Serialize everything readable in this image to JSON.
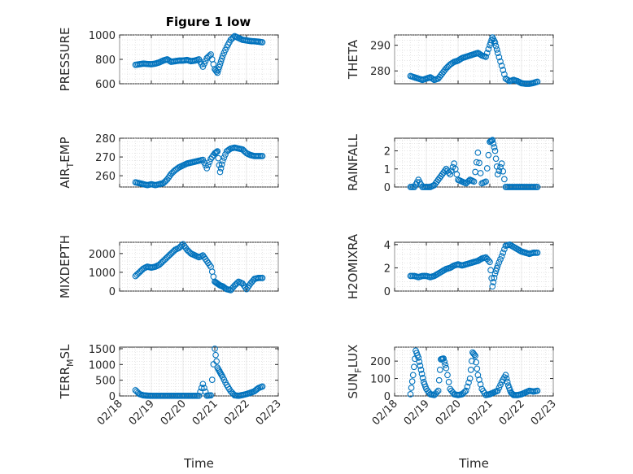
{
  "figure_title": "Figure 1 low",
  "chart_data": [
    {
      "type": "scatter",
      "ylabel": "PRESSURE",
      "ylim": [
        600,
        1000
      ],
      "yticks": [
        "600",
        "800",
        "1000"
      ],
      "xlabel": "",
      "xlim": [
        "02/18",
        "02/23"
      ],
      "grid": "on",
      "marker_color": "#0072BD",
      "series": [
        {
          "x": [
            "02/18 12:00",
            "02/18 15:00",
            "02/18 18:00",
            "02/18 21:00",
            "02/19 00:00",
            "02/19 03:00",
            "02/19 06:00",
            "02/19 09:00",
            "02/19 12:00",
            "02/19 15:00",
            "02/19 18:00",
            "02/19 21:00",
            "02/20 00:00",
            "02/20 03:00",
            "02/20 06:00",
            "02/20 09:00",
            "02/20 12:00",
            "02/20 15:00",
            "02/20 18:00",
            "02/20 21:00",
            "02/21 00:00",
            "02/21 02:00",
            "02/21 04:00",
            "02/21 06:00",
            "02/21 09:00",
            "02/21 12:00",
            "02/21 15:00",
            "02/21 18:00",
            "02/21 21:00",
            "02/22 00:00",
            "02/22 03:00",
            "02/22 06:00",
            "02/22 09:00",
            "02/22 12:00"
          ],
          "y": [
            755,
            760,
            765,
            762,
            760,
            765,
            775,
            790,
            800,
            780,
            785,
            790,
            790,
            795,
            785,
            790,
            800,
            740,
            810,
            840,
            720,
            690,
            760,
            830,
            900,
            960,
            990,
            975,
            960,
            955,
            950,
            948,
            945,
            940
          ]
        }
      ]
    },
    {
      "type": "scatter",
      "ylabel": "THETA",
      "ylim": [
        275,
        294
      ],
      "yticks": [
        "280",
        "290"
      ],
      "xlabel": "",
      "xlim": [
        "02/18",
        "02/23"
      ],
      "grid": "on",
      "marker_color": "#0072BD",
      "series": [
        {
          "x": [
            "02/18 12:00",
            "02/18 15:00",
            "02/18 18:00",
            "02/18 21:00",
            "02/19 00:00",
            "02/19 03:00",
            "02/19 06:00",
            "02/19 09:00",
            "02/19 12:00",
            "02/19 15:00",
            "02/19 18:00",
            "02/19 21:00",
            "02/20 00:00",
            "02/20 03:00",
            "02/20 06:00",
            "02/20 09:00",
            "02/20 12:00",
            "02/20 15:00",
            "02/20 18:00",
            "02/20 21:00",
            "02/21 00:00",
            "02/21 02:00",
            "02/21 04:00",
            "02/21 06:00",
            "02/21 09:00",
            "02/21 12:00",
            "02/21 15:00",
            "02/21 18:00",
            "02/21 21:00",
            "02/22 00:00",
            "02/22 03:00",
            "02/22 06:00",
            "02/22 09:00",
            "02/22 12:00"
          ],
          "y": [
            278,
            277.5,
            277,
            276.5,
            277,
            277.5,
            276.5,
            277,
            279,
            281,
            282.5,
            283.5,
            284,
            285,
            285.5,
            286,
            286.5,
            287,
            286,
            285.5,
            290,
            293,
            291,
            287,
            282,
            277,
            276,
            276.5,
            276,
            275.2,
            275,
            275,
            275.3,
            275.8
          ]
        }
      ]
    },
    {
      "type": "scatter",
      "ylabel": "AIR_TEMP",
      "ylabel_main": "AIR",
      "ylabel_sub": "T",
      "ylabel_rest": "EMP",
      "ylim": [
        254,
        280
      ],
      "yticks": [
        "260",
        "270",
        "280"
      ],
      "xlabel": "",
      "xlim": [
        "02/18",
        "02/23"
      ],
      "grid": "on",
      "marker_color": "#0072BD",
      "series": [
        {
          "x": [
            "02/18 12:00",
            "02/18 15:00",
            "02/18 18:00",
            "02/18 21:00",
            "02/19 00:00",
            "02/19 03:00",
            "02/19 06:00",
            "02/19 09:00",
            "02/19 12:00",
            "02/19 15:00",
            "02/19 18:00",
            "02/19 21:00",
            "02/20 00:00",
            "02/20 03:00",
            "02/20 06:00",
            "02/20 09:00",
            "02/20 12:00",
            "02/20 15:00",
            "02/20 18:00",
            "02/20 21:00",
            "02/21 00:00",
            "02/21 02:00",
            "02/21 04:00",
            "02/21 06:00",
            "02/21 09:00",
            "02/21 12:00",
            "02/21 15:00",
            "02/21 18:00",
            "02/21 21:00",
            "02/22 00:00",
            "02/22 03:00",
            "02/22 06:00",
            "02/22 09:00",
            "02/22 12:00"
          ],
          "y": [
            256.5,
            256,
            255.5,
            255,
            255.5,
            255,
            255.5,
            256,
            258,
            261,
            263,
            264.5,
            265.5,
            266.5,
            267,
            267.5,
            268,
            268.5,
            264,
            269,
            272,
            273,
            262,
            268,
            273,
            274.5,
            275,
            274.5,
            274,
            272,
            271,
            270.5,
            270.5,
            270.5
          ]
        }
      ]
    },
    {
      "type": "scatter",
      "ylabel": "RAINFALL",
      "ylim": [
        0,
        2.7
      ],
      "yticks": [
        "0",
        "1",
        "2"
      ],
      "xlabel": "",
      "xlim": [
        "02/18",
        "02/23"
      ],
      "grid": "on",
      "marker_color": "#0072BD",
      "series": [
        {
          "x": [
            "02/18 12:00",
            "02/18 15:00",
            "02/18 18:00",
            "02/18 21:00",
            "02/19 00:00",
            "02/19 03:00",
            "02/19 06:00",
            "02/19 09:00",
            "02/19 12:00",
            "02/19 15:00",
            "02/19 18:00",
            "02/19 21:00",
            "02/20 00:00",
            "02/20 03:00",
            "02/20 06:00",
            "02/20 09:00",
            "02/20 12:00",
            "02/20 15:00",
            "02/20 18:00",
            "02/20 21:00",
            "02/21 00:00",
            "02/21 02:00",
            "02/21 04:00",
            "02/21 06:00",
            "02/21 09:00",
            "02/21 12:00",
            "02/21 15:00",
            "02/21 18:00",
            "02/21 21:00",
            "02/22 00:00",
            "02/22 03:00",
            "02/22 06:00",
            "02/22 09:00",
            "02/22 12:00"
          ],
          "y": [
            0,
            0,
            0.4,
            0,
            0,
            0,
            0.1,
            0.4,
            0.7,
            1.0,
            0.7,
            1.3,
            0.4,
            0.3,
            0.2,
            0.4,
            0.3,
            1.9,
            0.2,
            0.3,
            2.5,
            2.6,
            2.0,
            0.7,
            1.3,
            0,
            0,
            0,
            0,
            0,
            0,
            0,
            0,
            0
          ]
        }
      ]
    },
    {
      "type": "scatter",
      "ylabel": "MIXDEPTH",
      "ylim": [
        0,
        2600
      ],
      "yticks": [
        "0",
        "1000",
        "2000"
      ],
      "xlabel": "",
      "xlim": [
        "02/18",
        "02/23"
      ],
      "grid": "on",
      "marker_color": "#0072BD",
      "series": [
        {
          "x": [
            "02/18 12:00",
            "02/18 15:00",
            "02/18 18:00",
            "02/18 21:00",
            "02/19 00:00",
            "02/19 03:00",
            "02/19 06:00",
            "02/19 09:00",
            "02/19 12:00",
            "02/19 15:00",
            "02/19 18:00",
            "02/19 21:00",
            "02/20 00:00",
            "02/20 03:00",
            "02/20 06:00",
            "02/20 09:00",
            "02/20 12:00",
            "02/20 15:00",
            "02/20 18:00",
            "02/20 21:00",
            "02/21 00:00",
            "02/21 02:00",
            "02/21 04:00",
            "02/21 06:00",
            "02/21 09:00",
            "02/21 12:00",
            "02/21 15:00",
            "02/21 18:00",
            "02/21 21:00",
            "02/22 00:00",
            "02/22 03:00",
            "02/22 06:00",
            "02/22 09:00",
            "02/22 12:00"
          ],
          "y": [
            800,
            1000,
            1200,
            1300,
            1250,
            1300,
            1400,
            1600,
            1800,
            2000,
            2200,
            2300,
            2500,
            2200,
            2000,
            1900,
            1800,
            1900,
            1600,
            1300,
            500,
            400,
            300,
            250,
            100,
            50,
            300,
            500,
            400,
            100,
            400,
            650,
            700,
            700
          ]
        }
      ]
    },
    {
      "type": "scatter",
      "ylabel": "H2OMIXRA",
      "ylim": [
        0,
        4.2
      ],
      "yticks": [
        "0",
        "2",
        "4"
      ],
      "xlabel": "",
      "xlim": [
        "02/18",
        "02/23"
      ],
      "grid": "on",
      "marker_color": "#0072BD",
      "series": [
        {
          "x": [
            "02/18 12:00",
            "02/18 15:00",
            "02/18 18:00",
            "02/18 21:00",
            "02/19 00:00",
            "02/19 03:00",
            "02/19 06:00",
            "02/19 09:00",
            "02/19 12:00",
            "02/19 15:00",
            "02/19 18:00",
            "02/19 21:00",
            "02/20 00:00",
            "02/20 03:00",
            "02/20 06:00",
            "02/20 09:00",
            "02/20 12:00",
            "02/20 15:00",
            "02/20 18:00",
            "02/20 21:00",
            "02/21 00:00",
            "02/21 02:00",
            "02/21 04:00",
            "02/21 06:00",
            "02/21 09:00",
            "02/21 12:00",
            "02/21 15:00",
            "02/21 18:00",
            "02/21 21:00",
            "02/22 00:00",
            "02/22 03:00",
            "02/22 06:00",
            "02/22 09:00",
            "02/22 12:00"
          ],
          "y": [
            1.3,
            1.3,
            1.2,
            1.3,
            1.3,
            1.2,
            1.3,
            1.5,
            1.7,
            1.9,
            2.0,
            2.2,
            2.3,
            2.2,
            2.3,
            2.4,
            2.5,
            2.6,
            2.8,
            2.9,
            2.5,
            0.4,
            1.5,
            2.2,
            3.0,
            3.9,
            4.0,
            3.8,
            3.6,
            3.4,
            3.3,
            3.2,
            3.3,
            3.3
          ]
        }
      ]
    },
    {
      "type": "scatter",
      "ylabel": "TERR_MSL",
      "ylabel_main": "TERR",
      "ylabel_sub": "M",
      "ylabel_rest": "SL",
      "ylim": [
        0,
        1550
      ],
      "yticks": [
        "0",
        "500",
        "1000",
        "1500"
      ],
      "xlabel": "Time",
      "xlim": [
        "02/18",
        "02/23"
      ],
      "xticks": [
        "02/18",
        "02/19",
        "02/20",
        "02/21",
        "02/22",
        "02/23"
      ],
      "grid": "on",
      "marker_color": "#0072BD",
      "series": [
        {
          "x": [
            "02/18 12:00",
            "02/18 15:00",
            "02/18 18:00",
            "02/18 21:00",
            "02/19 00:00",
            "02/19 03:00",
            "02/19 06:00",
            "02/19 09:00",
            "02/19 12:00",
            "02/19 15:00",
            "02/19 18:00",
            "02/19 21:00",
            "02/20 00:00",
            "02/20 03:00",
            "02/20 06:00",
            "02/20 09:00",
            "02/20 12:00",
            "02/20 15:00",
            "02/20 18:00",
            "02/20 21:00",
            "02/21 00:00",
            "02/21 02:00",
            "02/21 04:00",
            "02/21 06:00",
            "02/21 09:00",
            "02/21 12:00",
            "02/21 15:00",
            "02/21 18:00",
            "02/21 21:00",
            "02/22 00:00",
            "02/22 03:00",
            "02/22 06:00",
            "02/22 09:00",
            "02/22 12:00"
          ],
          "y": [
            180,
            60,
            20,
            10,
            5,
            5,
            5,
            5,
            5,
            5,
            5,
            5,
            5,
            5,
            5,
            5,
            5,
            380,
            10,
            20,
            1500,
            900,
            750,
            600,
            350,
            150,
            20,
            5,
            30,
            60,
            100,
            150,
            250,
            300
          ]
        }
      ]
    },
    {
      "type": "scatter",
      "ylabel": "SUN_FLUX",
      "ylabel_main": "SUN",
      "ylabel_sub": "F",
      "ylabel_rest": "LUX",
      "ylim": [
        0,
        280
      ],
      "yticks": [
        "0",
        "100",
        "200"
      ],
      "xlabel": "Time",
      "xlim": [
        "02/18",
        "02/23"
      ],
      "xticks": [
        "02/18",
        "02/19",
        "02/20",
        "02/21",
        "02/22",
        "02/23"
      ],
      "grid": "on",
      "marker_color": "#0072BD",
      "series": [
        {
          "x": [
            "02/18 12:00",
            "02/18 14:00",
            "02/18 16:00",
            "02/18 18:00",
            "02/18 20:00",
            "02/18 22:00",
            "02/19 00:00",
            "02/19 03:00",
            "02/19 06:00",
            "02/19 09:00",
            "02/19 11:00",
            "02/19 13:00",
            "02/19 15:00",
            "02/19 18:00",
            "02/19 21:00",
            "02/20 00:00",
            "02/20 03:00",
            "02/20 06:00",
            "02/20 09:00",
            "02/20 11:00",
            "02/20 13:00",
            "02/20 15:00",
            "02/20 18:00",
            "02/20 21:00",
            "02/21 00:00",
            "02/21 03:00",
            "02/21 06:00",
            "02/21 09:00",
            "02/21 12:00",
            "02/21 14:00",
            "02/21 16:00",
            "02/21 18:00",
            "02/21 21:00",
            "02/22 00:00",
            "02/22 03:00",
            "02/22 06:00",
            "02/22 09:00",
            "02/22 12:00"
          ],
          "y": [
            10,
            120,
            260,
            220,
            150,
            80,
            40,
            10,
            5,
            30,
            210,
            215,
            160,
            40,
            10,
            5,
            10,
            30,
            100,
            250,
            230,
            120,
            40,
            5,
            10,
            20,
            30,
            80,
            120,
            60,
            20,
            5,
            5,
            10,
            20,
            30,
            25,
            30
          ]
        }
      ]
    }
  ]
}
